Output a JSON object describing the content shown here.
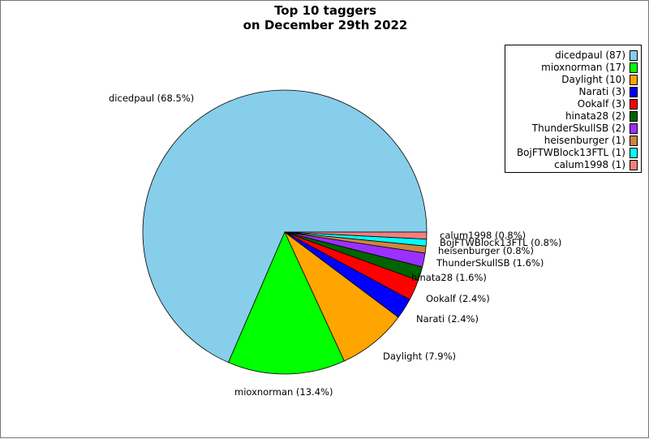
{
  "chart_data": {
    "type": "pie",
    "title": "Top 10 taggers",
    "subtitle": "on December 29th 2022",
    "slices": [
      {
        "label": "dicedpaul",
        "value": 87,
        "pct_label": "dicedpaul (68.5%)",
        "legend": "dicedpaul (87)",
        "color": "#87CEEB"
      },
      {
        "label": "mioxnorman",
        "value": 17,
        "pct_label": "mioxnorman (13.4%)",
        "legend": "mioxnorman (17)",
        "color": "#00FF00"
      },
      {
        "label": "Daylight",
        "value": 10,
        "pct_label": "Daylight (7.9%)",
        "legend": "Daylight (10)",
        "color": "#FFA500"
      },
      {
        "label": "Narati",
        "value": 3,
        "pct_label": "Narati (2.4%)",
        "legend": "Narati (3)",
        "color": "#0000FF"
      },
      {
        "label": "Ookalf",
        "value": 3,
        "pct_label": "Ookalf (2.4%)",
        "legend": "Ookalf (3)",
        "color": "#FF0000"
      },
      {
        "label": "hinata28",
        "value": 2,
        "pct_label": "hinata28 (1.6%)",
        "legend": "hinata28 (2)",
        "color": "#006400"
      },
      {
        "label": "ThunderSkullSB",
        "value": 2,
        "pct_label": "ThunderSkullSB (1.6%)",
        "legend": "ThunderSkullSB (2)",
        "color": "#9B30FF"
      },
      {
        "label": "heisenburger",
        "value": 1,
        "pct_label": "heisenburger (0.8%)",
        "legend": "heisenburger (1)",
        "color": "#CD853F"
      },
      {
        "label": "BojFTWBlock13FTL",
        "value": 1,
        "pct_label": "BojFTWBlock13FTL (0.8%)",
        "legend": "BojFTWBlock13FTL (1)",
        "color": "#00FFFF"
      },
      {
        "label": "calum1998",
        "value": 1,
        "pct_label": "calum1998 (0.8%)",
        "legend": "calum1998 (1)",
        "color": "#F08080"
      }
    ],
    "start_angle": "3 o'clock",
    "direction": "counter-clockwise",
    "legend_position": "top-right"
  }
}
